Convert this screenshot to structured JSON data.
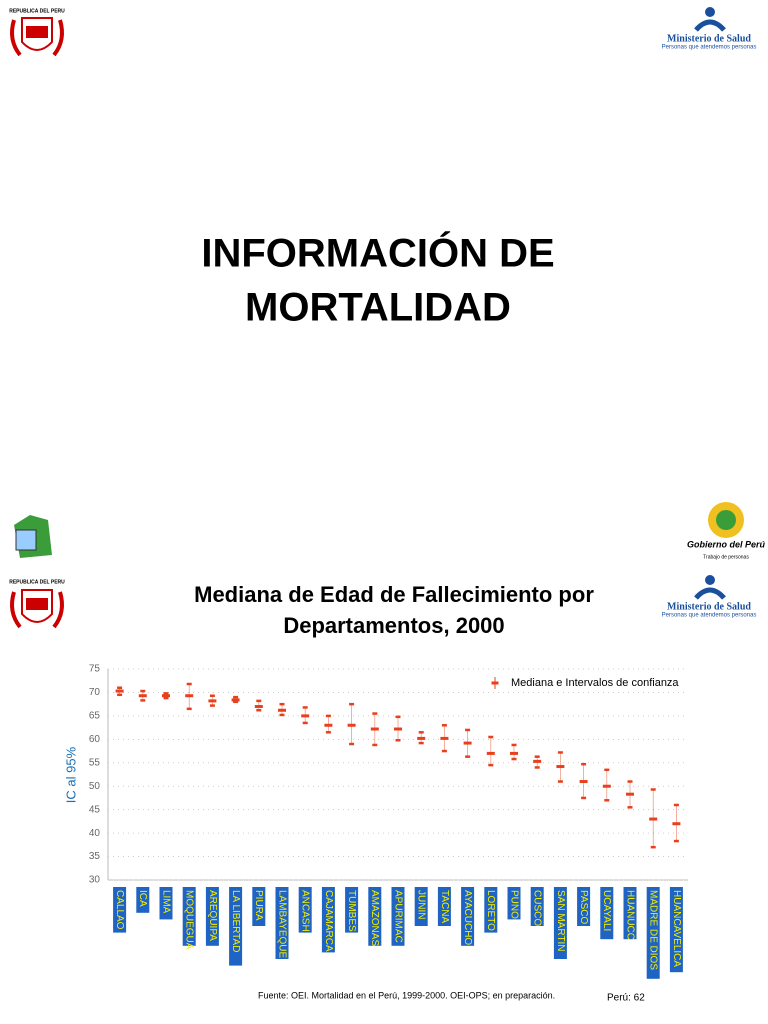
{
  "header": {
    "shield_text": "REPUBLICA DEL PERU",
    "ministry": "Ministerio de Salud",
    "ministry_tagline": "Personas que atendemos personas",
    "government": "Gobierno del Perú",
    "government_tagline": "Trabajo de personas"
  },
  "slide_title": [
    "INFORMACIÓN DE",
    "MORTALIDAD"
  ],
  "chart_data": {
    "type": "errorbar",
    "title": [
      "Mediana de Edad de Fallecimiento por",
      "Departamentos, 2000"
    ],
    "y_label": "IC al 95%",
    "categories": [
      "CALLAO",
      "ICA",
      "LIMA",
      "MOQUEGUA",
      "AREQUIPA",
      "LA LIBERTAD",
      "PIURA",
      "LAMBAYEQUE",
      "ANCASH",
      "CAJAMARCA",
      "TUMBES",
      "AMAZONAS",
      "APURIMAC",
      "JUNIN",
      "TACNA",
      "AYACUCHO",
      "LORETO",
      "PUNO",
      "CUSCO",
      "SAN MARTIN",
      "PASCO",
      "UCAYALI",
      "HUANUCO",
      "MADRE DE DIOS",
      "HUANCAVELICA"
    ],
    "series": [
      {
        "name": "Mediana e Intervalos de confianza",
        "color": "#e8401c",
        "median": [
          70.3,
          69.3,
          69.3,
          69.3,
          68.2,
          68.4,
          67,
          66.2,
          65,
          63,
          63,
          62.2,
          62.2,
          60.2,
          60.2,
          59.2,
          57,
          57,
          55.3,
          54.2,
          51,
          50,
          48.3,
          43,
          42
        ],
        "low": [
          69.5,
          68.3,
          68.8,
          66.5,
          67.2,
          68,
          66.2,
          65.2,
          63.5,
          61.5,
          59,
          58.8,
          59.8,
          59.2,
          57.5,
          56.3,
          54.5,
          55.8,
          54,
          51,
          47.5,
          47,
          45.5,
          37,
          38.3
        ],
        "high": [
          71,
          70.3,
          69.8,
          71.8,
          69.3,
          69,
          68.2,
          67.5,
          66.8,
          65,
          67.5,
          65.5,
          64.8,
          61.5,
          63,
          62,
          60.5,
          58.8,
          56.3,
          57.2,
          54.7,
          53.5,
          51,
          49.3,
          46
        ]
      }
    ],
    "ylim": [
      30,
      75
    ],
    "yticks": [
      30,
      35,
      40,
      45,
      50,
      55,
      60,
      65,
      70,
      75
    ],
    "grid": true,
    "legend": "top-right",
    "source": "Fuente: OEI. Mortalidad en el Perú, 1999-2000. OEI-OPS; en preparación.",
    "note": "Perú:  62"
  }
}
